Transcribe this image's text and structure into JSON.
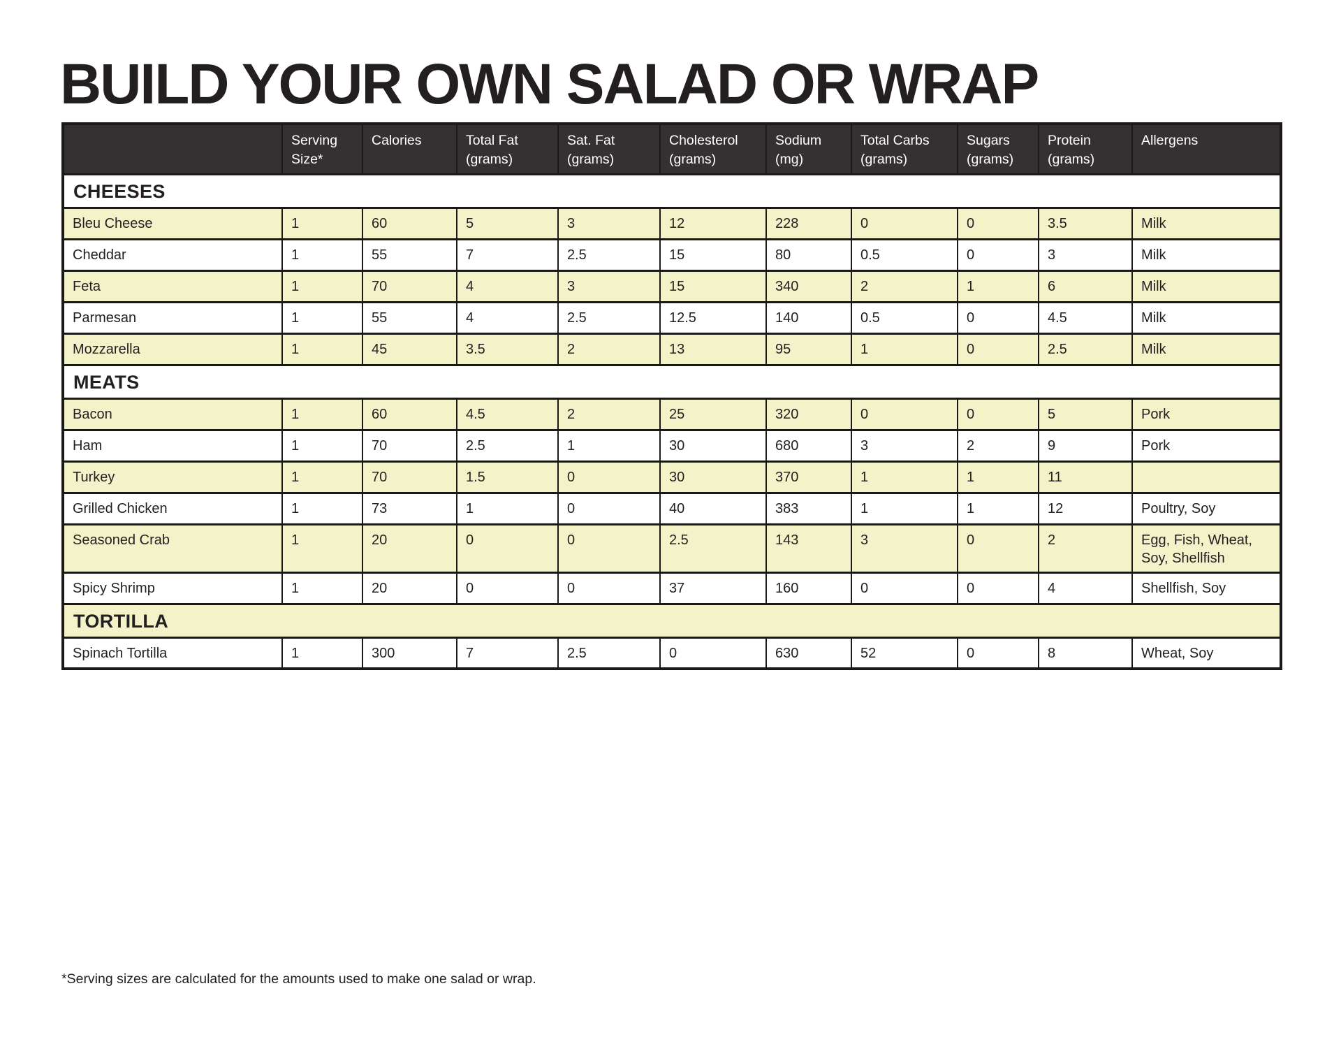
{
  "page": {
    "title": "BUILD YOUR OWN SALAD OR WRAP",
    "footnote": "*Serving sizes are calculated for the amounts used to make one salad or wrap."
  },
  "colors": {
    "header_bg": "#353132",
    "header_text": "#ffffff",
    "shaded_row_bg": "#f3f3ca",
    "body_text": "#231f20",
    "border": "#1b1918",
    "page_bg": "#ffffff"
  },
  "table": {
    "columns": [
      "",
      "Serving\nSize*",
      "Calories",
      "Total Fat\n(grams)",
      "Sat. Fat\n(grams)",
      "Cholesterol\n(grams)",
      "Sodium\n(mg)",
      "Total Carbs\n(grams)",
      "Sugars\n(grams)",
      "Protein\n(grams)",
      "Allergens"
    ],
    "sections": [
      {
        "name": "CHEESES",
        "header_shaded": false,
        "rows_start_shaded": true,
        "rows": [
          {
            "name": "Bleu Cheese",
            "cells": [
              "1",
              "60",
              "5",
              "3",
              "12",
              "228",
              "0",
              "0",
              "3.5",
              "Milk"
            ]
          },
          {
            "name": "Cheddar",
            "cells": [
              "1",
              "55",
              "7",
              "2.5",
              "15",
              "80",
              "0.5",
              "0",
              "3",
              "Milk"
            ]
          },
          {
            "name": "Feta",
            "cells": [
              "1",
              "70",
              "4",
              "3",
              "15",
              "340",
              "2",
              "1",
              "6",
              "Milk"
            ]
          },
          {
            "name": "Parmesan",
            "cells": [
              "1",
              "55",
              "4",
              "2.5",
              "12.5",
              "140",
              "0.5",
              "0",
              "4.5",
              "Milk"
            ]
          },
          {
            "name": "Mozzarella",
            "cells": [
              "1",
              "45",
              "3.5",
              "2",
              "13",
              "95",
              "1",
              "0",
              "2.5",
              "Milk"
            ]
          }
        ]
      },
      {
        "name": "MEATS",
        "header_shaded": false,
        "rows_start_shaded": true,
        "rows": [
          {
            "name": "Bacon",
            "cells": [
              "1",
              "60",
              "4.5",
              "2",
              "25",
              "320",
              "0",
              "0",
              "5",
              "Pork"
            ]
          },
          {
            "name": "Ham",
            "cells": [
              "1",
              "70",
              "2.5",
              "1",
              "30",
              "680",
              "3",
              "2",
              "9",
              "Pork"
            ]
          },
          {
            "name": "Turkey",
            "cells": [
              "1",
              "70",
              "1.5",
              "0",
              "30",
              "370",
              "1",
              "1",
              "11",
              ""
            ]
          },
          {
            "name": "Grilled Chicken",
            "cells": [
              "1",
              "73",
              "1",
              "0",
              "40",
              "383",
              "1",
              "1",
              "12",
              "Poultry, Soy"
            ]
          },
          {
            "name": "Seasoned Crab",
            "cells": [
              "1",
              "20",
              "0",
              "0",
              "2.5",
              "143",
              "3",
              "0",
              "2",
              "Egg, Fish, Wheat,\nSoy, Shellfish"
            ]
          },
          {
            "name": "Spicy Shrimp",
            "cells": [
              "1",
              "20",
              "0",
              "0",
              "37",
              "160",
              "0",
              "0",
              "4",
              "Shellfish, Soy"
            ]
          }
        ]
      },
      {
        "name": "TORTILLA",
        "header_shaded": true,
        "rows_start_shaded": false,
        "rows": [
          {
            "name": "Spinach Tortilla",
            "cells": [
              "1",
              "300",
              "7",
              "2.5",
              "0",
              "630",
              "52",
              "0",
              "8",
              "Wheat, Soy"
            ]
          }
        ]
      }
    ]
  }
}
